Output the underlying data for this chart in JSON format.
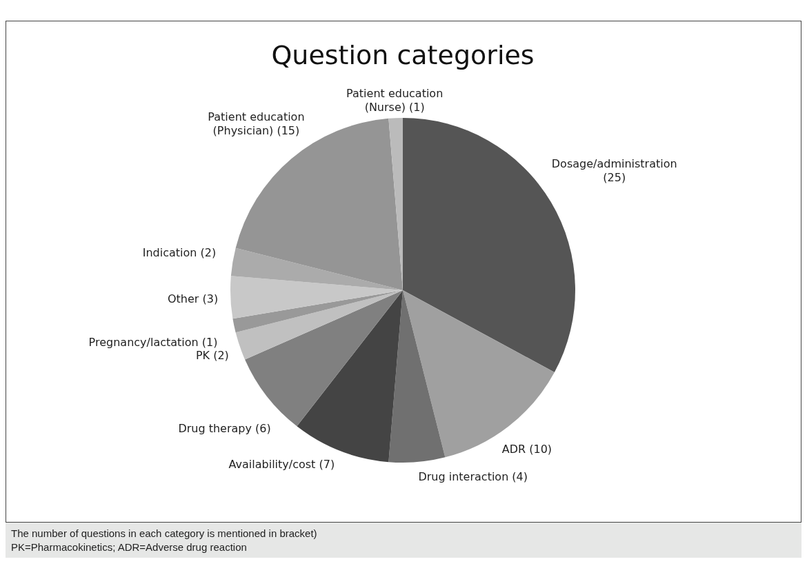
{
  "chart_data": {
    "type": "pie",
    "title": "Question categories",
    "categories": [
      "Dosage/administration",
      "ADR",
      "Drug interaction",
      "Availability/cost",
      "Drug therapy",
      "PK",
      "Pregnancy/lactation",
      "Other",
      "Indication",
      "Patient education (Physician)",
      "Patient education (Nurse)"
    ],
    "values": [
      25,
      10,
      4,
      7,
      6,
      2,
      1,
      3,
      2,
      15,
      1
    ],
    "value_labels": [
      "(25)",
      "(10)",
      "(4)",
      "(7)",
      "(6)",
      "(2)",
      "(1)",
      "(3)",
      "(2)",
      "(15)",
      "(1)"
    ],
    "colors": [
      "#555555",
      "#a0a0a0",
      "#707070",
      "#444444",
      "#808080",
      "#c0c0c0",
      "#999999",
      "#c8c8c8",
      "#ababab",
      "#959595",
      "#bbbbbb"
    ],
    "legend": false,
    "annotations": [
      "The number of questions in each category is mentioned in bracket)",
      "PK=Pharmacokinetics; ADR=Adverse drug reaction"
    ]
  }
}
